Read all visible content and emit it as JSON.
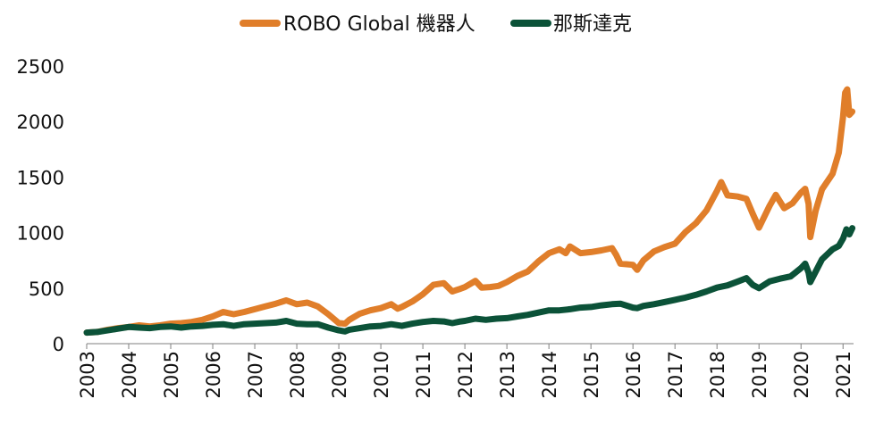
{
  "chart_data": {
    "type": "line",
    "title": "",
    "xlabel": "",
    "ylabel": "",
    "ylim": [
      0,
      2500
    ],
    "xlim": [
      2003,
      2021.25
    ],
    "yticks": [
      0,
      500,
      1000,
      1500,
      2000,
      2500
    ],
    "xticks": [
      2003,
      2004,
      2005,
      2006,
      2007,
      2008,
      2009,
      2010,
      2011,
      2012,
      2013,
      2014,
      2015,
      2016,
      2017,
      2018,
      2019,
      2020,
      2021
    ],
    "legend_position": "top-center",
    "grid": false,
    "series": [
      {
        "name": "ROBO Global 機器人",
        "color": "#E07E2A",
        "points": [
          [
            2003.0,
            100
          ],
          [
            2003.25,
            105
          ],
          [
            2003.5,
            125
          ],
          [
            2003.75,
            140
          ],
          [
            2004.0,
            150
          ],
          [
            2004.25,
            165
          ],
          [
            2004.5,
            155
          ],
          [
            2004.75,
            165
          ],
          [
            2005.0,
            180
          ],
          [
            2005.25,
            185
          ],
          [
            2005.5,
            195
          ],
          [
            2005.75,
            215
          ],
          [
            2006.0,
            245
          ],
          [
            2006.25,
            285
          ],
          [
            2006.5,
            265
          ],
          [
            2006.75,
            285
          ],
          [
            2007.0,
            310
          ],
          [
            2007.25,
            335
          ],
          [
            2007.5,
            360
          ],
          [
            2007.75,
            390
          ],
          [
            2008.0,
            355
          ],
          [
            2008.25,
            370
          ],
          [
            2008.5,
            335
          ],
          [
            2008.75,
            265
          ],
          [
            2009.0,
            185
          ],
          [
            2009.15,
            180
          ],
          [
            2009.25,
            215
          ],
          [
            2009.5,
            270
          ],
          [
            2009.75,
            300
          ],
          [
            2010.0,
            320
          ],
          [
            2010.25,
            355
          ],
          [
            2010.4,
            315
          ],
          [
            2010.5,
            330
          ],
          [
            2010.75,
            380
          ],
          [
            2011.0,
            445
          ],
          [
            2011.25,
            530
          ],
          [
            2011.5,
            545
          ],
          [
            2011.7,
            470
          ],
          [
            2011.9,
            495
          ],
          [
            2012.0,
            510
          ],
          [
            2012.25,
            565
          ],
          [
            2012.4,
            505
          ],
          [
            2012.6,
            510
          ],
          [
            2012.8,
            520
          ],
          [
            2013.0,
            555
          ],
          [
            2013.25,
            610
          ],
          [
            2013.5,
            650
          ],
          [
            2013.75,
            740
          ],
          [
            2014.0,
            815
          ],
          [
            2014.25,
            850
          ],
          [
            2014.4,
            815
          ],
          [
            2014.5,
            875
          ],
          [
            2014.75,
            815
          ],
          [
            2015.0,
            825
          ],
          [
            2015.25,
            840
          ],
          [
            2015.5,
            860
          ],
          [
            2015.6,
            800
          ],
          [
            2015.7,
            720
          ],
          [
            2016.0,
            710
          ],
          [
            2016.1,
            665
          ],
          [
            2016.25,
            750
          ],
          [
            2016.5,
            830
          ],
          [
            2016.75,
            870
          ],
          [
            2017.0,
            900
          ],
          [
            2017.25,
            1005
          ],
          [
            2017.5,
            1085
          ],
          [
            2017.75,
            1200
          ],
          [
            2018.0,
            1375
          ],
          [
            2018.1,
            1455
          ],
          [
            2018.25,
            1335
          ],
          [
            2018.5,
            1325
          ],
          [
            2018.7,
            1305
          ],
          [
            2018.85,
            1170
          ],
          [
            2019.0,
            1045
          ],
          [
            2019.25,
            1240
          ],
          [
            2019.4,
            1340
          ],
          [
            2019.6,
            1220
          ],
          [
            2019.8,
            1265
          ],
          [
            2020.0,
            1360
          ],
          [
            2020.1,
            1395
          ],
          [
            2020.18,
            1260
          ],
          [
            2020.22,
            960
          ],
          [
            2020.35,
            1200
          ],
          [
            2020.5,
            1390
          ],
          [
            2020.75,
            1530
          ],
          [
            2020.9,
            1720
          ],
          [
            2021.0,
            2040
          ],
          [
            2021.05,
            2260
          ],
          [
            2021.1,
            2290
          ],
          [
            2021.15,
            2060
          ],
          [
            2021.22,
            2090
          ]
        ]
      },
      {
        "name": "那斯達克",
        "color": "#0B5238",
        "points": [
          [
            2003.0,
            100
          ],
          [
            2003.25,
            105
          ],
          [
            2003.5,
            120
          ],
          [
            2003.75,
            135
          ],
          [
            2004.0,
            150
          ],
          [
            2004.25,
            145
          ],
          [
            2004.5,
            140
          ],
          [
            2004.75,
            150
          ],
          [
            2005.0,
            155
          ],
          [
            2005.25,
            145
          ],
          [
            2005.5,
            155
          ],
          [
            2005.75,
            160
          ],
          [
            2006.0,
            170
          ],
          [
            2006.25,
            175
          ],
          [
            2006.5,
            160
          ],
          [
            2006.75,
            175
          ],
          [
            2007.0,
            180
          ],
          [
            2007.25,
            185
          ],
          [
            2007.5,
            190
          ],
          [
            2007.75,
            205
          ],
          [
            2008.0,
            180
          ],
          [
            2008.25,
            175
          ],
          [
            2008.5,
            175
          ],
          [
            2008.75,
            145
          ],
          [
            2009.0,
            120
          ],
          [
            2009.15,
            110
          ],
          [
            2009.25,
            125
          ],
          [
            2009.5,
            140
          ],
          [
            2009.75,
            155
          ],
          [
            2010.0,
            160
          ],
          [
            2010.25,
            175
          ],
          [
            2010.5,
            160
          ],
          [
            2010.75,
            180
          ],
          [
            2011.0,
            195
          ],
          [
            2011.25,
            205
          ],
          [
            2011.5,
            200
          ],
          [
            2011.7,
            185
          ],
          [
            2011.9,
            200
          ],
          [
            2012.0,
            205
          ],
          [
            2012.25,
            225
          ],
          [
            2012.5,
            215
          ],
          [
            2012.75,
            225
          ],
          [
            2013.0,
            230
          ],
          [
            2013.25,
            245
          ],
          [
            2013.5,
            260
          ],
          [
            2013.75,
            280
          ],
          [
            2014.0,
            300
          ],
          [
            2014.25,
            300
          ],
          [
            2014.5,
            310
          ],
          [
            2014.75,
            325
          ],
          [
            2015.0,
            330
          ],
          [
            2015.25,
            345
          ],
          [
            2015.5,
            355
          ],
          [
            2015.7,
            360
          ],
          [
            2016.0,
            325
          ],
          [
            2016.1,
            320
          ],
          [
            2016.25,
            340
          ],
          [
            2016.5,
            355
          ],
          [
            2016.75,
            375
          ],
          [
            2017.0,
            395
          ],
          [
            2017.25,
            415
          ],
          [
            2017.5,
            440
          ],
          [
            2017.75,
            470
          ],
          [
            2018.0,
            505
          ],
          [
            2018.25,
            525
          ],
          [
            2018.5,
            560
          ],
          [
            2018.7,
            590
          ],
          [
            2018.85,
            530
          ],
          [
            2019.0,
            500
          ],
          [
            2019.25,
            560
          ],
          [
            2019.5,
            585
          ],
          [
            2019.75,
            605
          ],
          [
            2020.0,
            680
          ],
          [
            2020.1,
            720
          ],
          [
            2020.18,
            640
          ],
          [
            2020.22,
            555
          ],
          [
            2020.35,
            650
          ],
          [
            2020.5,
            760
          ],
          [
            2020.75,
            850
          ],
          [
            2020.9,
            880
          ],
          [
            2021.0,
            945
          ],
          [
            2021.08,
            1030
          ],
          [
            2021.15,
            985
          ],
          [
            2021.22,
            1040
          ]
        ]
      }
    ]
  }
}
